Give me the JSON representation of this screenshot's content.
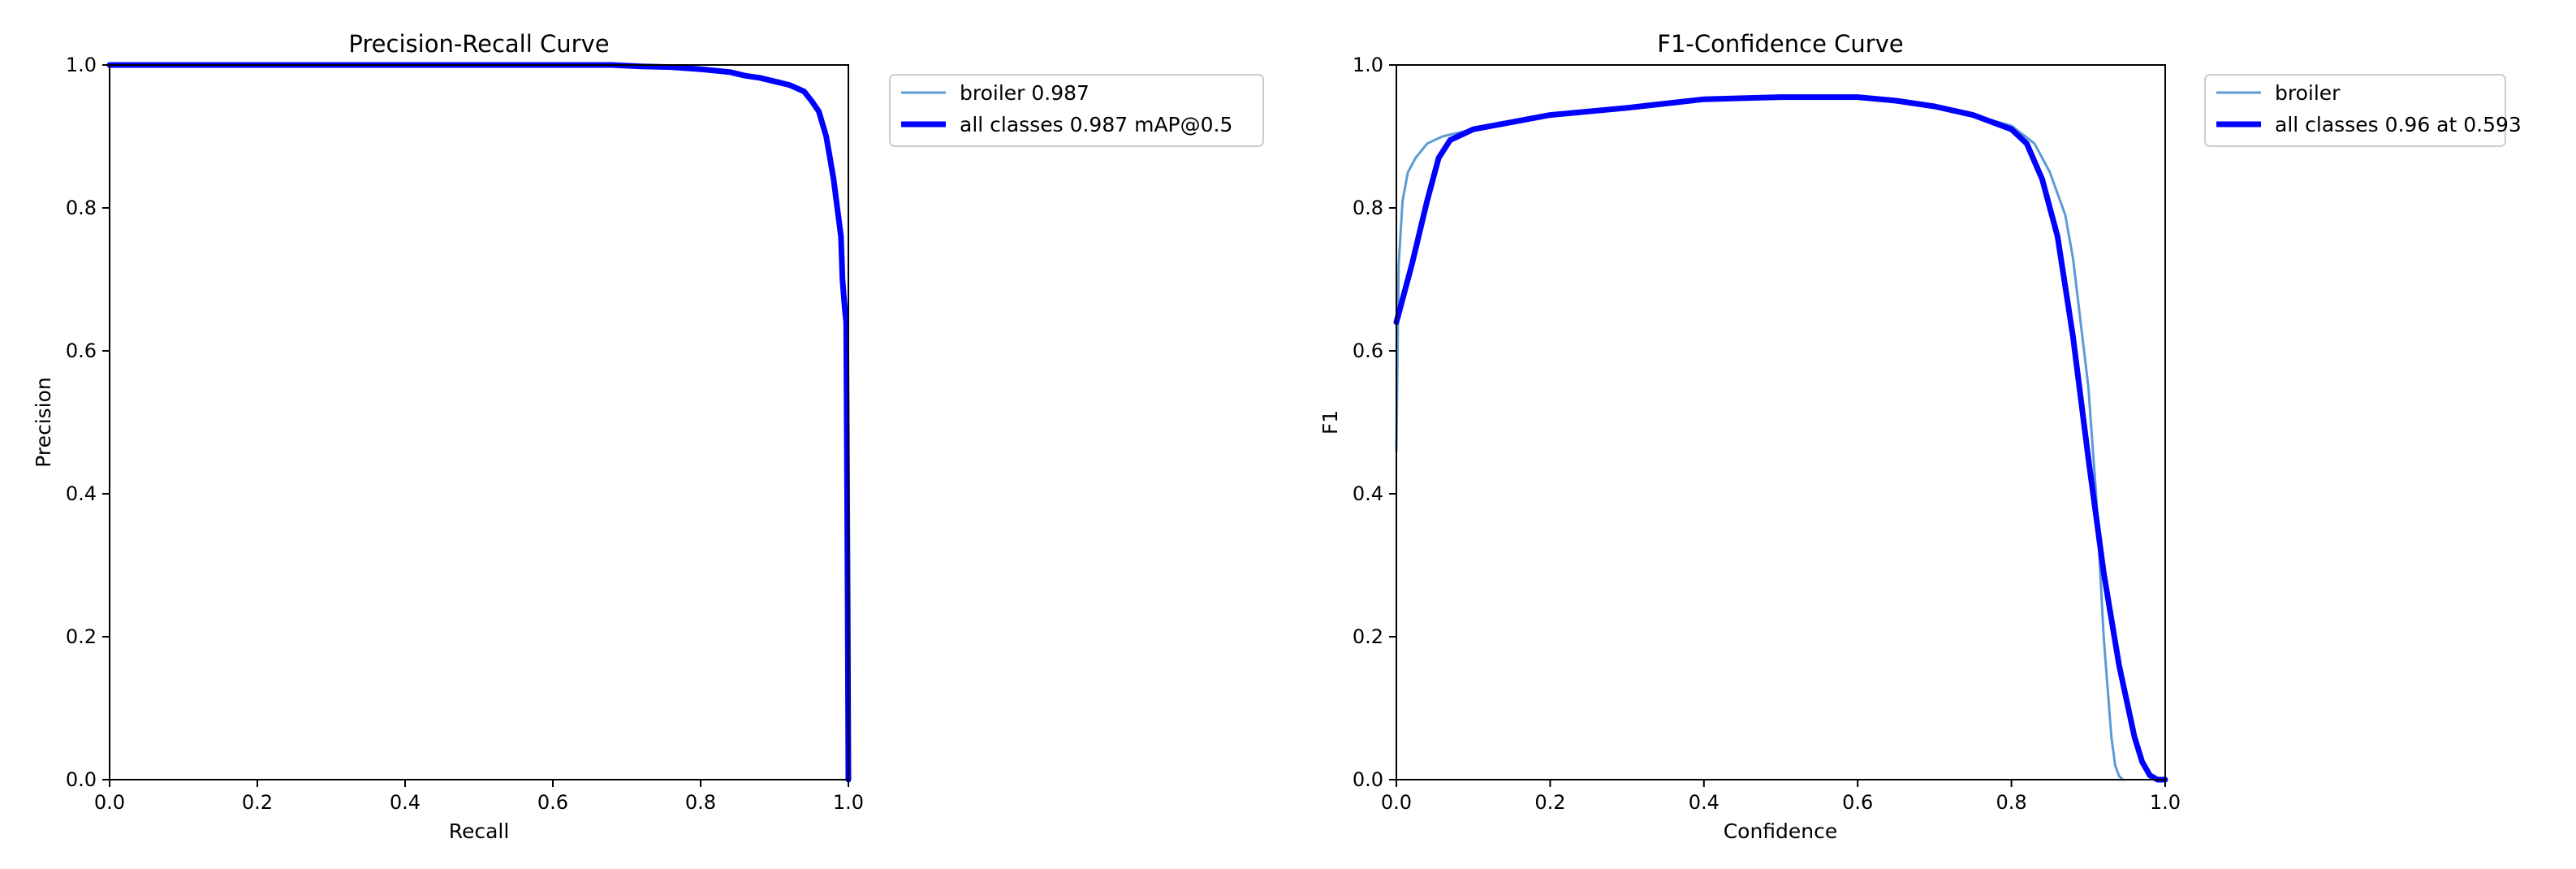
{
  "chart_data": [
    {
      "type": "line",
      "title": "Precision-Recall Curve",
      "xlabel": "Recall",
      "ylabel": "Precision",
      "xlim": [
        0,
        1
      ],
      "ylim": [
        0,
        1
      ],
      "xticks": [
        "0.0",
        "0.2",
        "0.4",
        "0.6",
        "0.8",
        "1.0"
      ],
      "yticks": [
        "0.0",
        "0.2",
        "0.4",
        "0.6",
        "0.8",
        "1.0"
      ],
      "grid": false,
      "legend_position": "outside-upper-right",
      "series": [
        {
          "name": "broiler 0.987",
          "color": "#5b9bd5",
          "x": [
            0,
            0.3,
            0.5,
            0.68,
            0.72,
            0.76,
            0.8,
            0.84,
            0.86,
            0.88,
            0.9,
            0.92,
            0.94,
            0.95,
            0.96,
            0.97,
            0.975,
            0.98,
            0.985,
            0.99,
            0.992,
            0.995,
            0.997,
            0.998,
            0.999,
            1.0
          ],
          "y": [
            1.0,
            1.0,
            1.0,
            1.0,
            0.998,
            0.997,
            0.994,
            0.99,
            0.985,
            0.982,
            0.977,
            0.972,
            0.963,
            0.95,
            0.935,
            0.9,
            0.87,
            0.84,
            0.8,
            0.76,
            0.7,
            0.66,
            0.64,
            0.45,
            0.25,
            0.0
          ]
        },
        {
          "name": "all classes 0.987 mAP@0.5",
          "color": "#0000ff",
          "x": [
            0,
            0.3,
            0.5,
            0.68,
            0.72,
            0.76,
            0.8,
            0.84,
            0.86,
            0.88,
            0.9,
            0.92,
            0.94,
            0.95,
            0.96,
            0.97,
            0.975,
            0.98,
            0.985,
            0.99,
            0.992,
            0.995,
            0.997,
            0.998,
            0.999,
            1.0
          ],
          "y": [
            1.0,
            1.0,
            1.0,
            1.0,
            0.998,
            0.997,
            0.994,
            0.99,
            0.985,
            0.982,
            0.977,
            0.972,
            0.963,
            0.95,
            0.935,
            0.9,
            0.87,
            0.84,
            0.8,
            0.76,
            0.7,
            0.66,
            0.64,
            0.45,
            0.25,
            0.0
          ]
        }
      ]
    },
    {
      "type": "line",
      "title": "F1-Confidence Curve",
      "xlabel": "Confidence",
      "ylabel": "F1",
      "xlim": [
        0,
        1
      ],
      "ylim": [
        0,
        1
      ],
      "xticks": [
        "0.0",
        "0.2",
        "0.4",
        "0.6",
        "0.8",
        "1.0"
      ],
      "yticks": [
        "0.0",
        "0.2",
        "0.4",
        "0.6",
        "0.8",
        "1.0"
      ],
      "grid": false,
      "legend_position": "outside-upper-right",
      "series": [
        {
          "name": "broiler",
          "color": "#5b9bd5",
          "x": [
            0,
            0.003,
            0.008,
            0.015,
            0.025,
            0.04,
            0.06,
            0.08,
            0.1,
            0.15,
            0.2,
            0.3,
            0.4,
            0.5,
            0.6,
            0.65,
            0.7,
            0.75,
            0.8,
            0.83,
            0.85,
            0.87,
            0.88,
            0.9,
            0.91,
            0.92,
            0.93,
            0.935,
            0.94,
            0.945
          ],
          "y": [
            0.46,
            0.72,
            0.81,
            0.85,
            0.87,
            0.89,
            0.9,
            0.905,
            0.91,
            0.92,
            0.93,
            0.94,
            0.952,
            0.955,
            0.955,
            0.95,
            0.942,
            0.93,
            0.915,
            0.89,
            0.85,
            0.79,
            0.73,
            0.55,
            0.4,
            0.2,
            0.06,
            0.02,
            0.005,
            0.0
          ]
        },
        {
          "name": "all classes 0.96 at 0.593",
          "color": "#0000ff",
          "x": [
            0,
            0.02,
            0.04,
            0.055,
            0.07,
            0.1,
            0.15,
            0.2,
            0.3,
            0.4,
            0.5,
            0.6,
            0.65,
            0.7,
            0.75,
            0.8,
            0.82,
            0.84,
            0.86,
            0.88,
            0.9,
            0.92,
            0.94,
            0.96,
            0.97,
            0.98,
            0.99,
            1.0
          ],
          "y": [
            0.64,
            0.72,
            0.81,
            0.87,
            0.895,
            0.91,
            0.92,
            0.93,
            0.94,
            0.952,
            0.955,
            0.955,
            0.95,
            0.942,
            0.93,
            0.91,
            0.89,
            0.84,
            0.76,
            0.62,
            0.45,
            0.29,
            0.16,
            0.06,
            0.025,
            0.006,
            0.0,
            0.0
          ]
        }
      ]
    }
  ]
}
